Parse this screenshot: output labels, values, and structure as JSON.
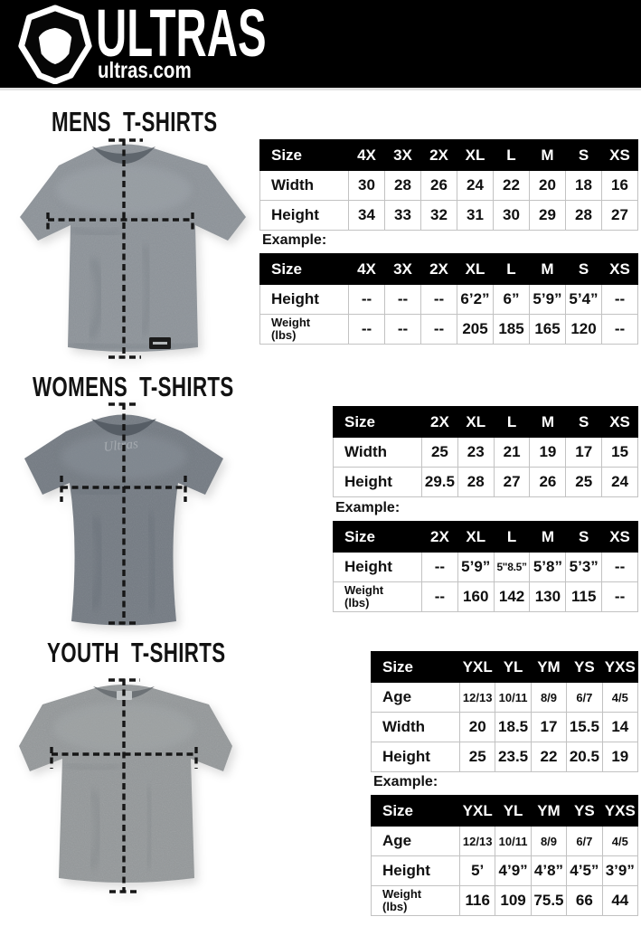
{
  "header": {
    "brand": "ULTRAS",
    "site": "ultras.com",
    "bg_color": "#000000"
  },
  "shirt_colors": {
    "mens": "#8d9399",
    "womens": "#747b83",
    "youth": "#94989a",
    "measure_line": "#161616"
  },
  "sections": [
    {
      "id": "mens",
      "title": "MENS T-SHIRTS",
      "example_label": "Example:",
      "size_table": {
        "columns": [
          "Size",
          "4X",
          "3X",
          "2X",
          "XL",
          "L",
          "M",
          "S",
          "XS"
        ],
        "rows": [
          {
            "label": "Width",
            "values": [
              "30",
              "28",
              "26",
              "24",
              "22",
              "20",
              "18",
              "16"
            ]
          },
          {
            "label": "Height",
            "values": [
              "34",
              "33",
              "32",
              "31",
              "30",
              "29",
              "28",
              "27"
            ]
          }
        ]
      },
      "example_table": {
        "columns": [
          "Size",
          "4X",
          "3X",
          "2X",
          "XL",
          "L",
          "M",
          "S",
          "XS"
        ],
        "rows": [
          {
            "label": "Height",
            "values": [
              "--",
              "--",
              "--",
              "6’2”",
              "6”",
              "5’9”",
              "5’4”",
              "--"
            ]
          },
          {
            "label": "Weight\n(lbs)",
            "values": [
              "--",
              "--",
              "--",
              "205",
              "185",
              "165",
              "120",
              "--"
            ]
          }
        ]
      }
    },
    {
      "id": "womens",
      "title": "WOMENS T-SHIRTS",
      "example_label": "Example:",
      "size_table": {
        "columns": [
          "Size",
          "2X",
          "XL",
          "L",
          "M",
          "S",
          "XS"
        ],
        "rows": [
          {
            "label": "Width",
            "values": [
              "25",
              "23",
              "21",
              "19",
              "17",
              "15"
            ]
          },
          {
            "label": "Height",
            "values": [
              "29.5",
              "28",
              "27",
              "26",
              "25",
              "24"
            ]
          }
        ]
      },
      "example_table": {
        "columns": [
          "Size",
          "2X",
          "XL",
          "L",
          "M",
          "S",
          "XS"
        ],
        "rows": [
          {
            "label": "Height",
            "values": [
              "--",
              "5’9”",
              "5\"8.5”",
              "5’8”",
              "5’3”",
              "--"
            ]
          },
          {
            "label": "Weight\n(lbs)",
            "values": [
              "--",
              "160",
              "142",
              "130",
              "115",
              "--"
            ]
          }
        ]
      }
    },
    {
      "id": "youth",
      "title": "YOUTH T-SHIRTS",
      "example_label": "Example:",
      "size_table": {
        "columns": [
          "Size",
          "YXL",
          "YL",
          "YM",
          "YS",
          "YXS"
        ],
        "rows": [
          {
            "label": "Age",
            "small": true,
            "values": [
              "12/13",
              "10/11",
              "8/9",
              "6/7",
              "4/5"
            ]
          },
          {
            "label": "Width",
            "values": [
              "20",
              "18.5",
              "17",
              "15.5",
              "14"
            ]
          },
          {
            "label": "Height",
            "values": [
              "25",
              "23.5",
              "22",
              "20.5",
              "19"
            ]
          }
        ]
      },
      "example_table": {
        "columns": [
          "Size",
          "YXL",
          "YL",
          "YM",
          "YS",
          "YXS"
        ],
        "rows": [
          {
            "label": "Age",
            "small": true,
            "values": [
              "12/13",
              "10/11",
              "8/9",
              "6/7",
              "4/5"
            ]
          },
          {
            "label": "Height",
            "values": [
              "5’",
              "4’9”",
              "4’8”",
              "4’5”",
              "3’9”"
            ]
          },
          {
            "label": "Weight\n(lbs)",
            "values": [
              "116",
              "109",
              "75.5",
              "66",
              "44"
            ]
          }
        ]
      }
    }
  ]
}
